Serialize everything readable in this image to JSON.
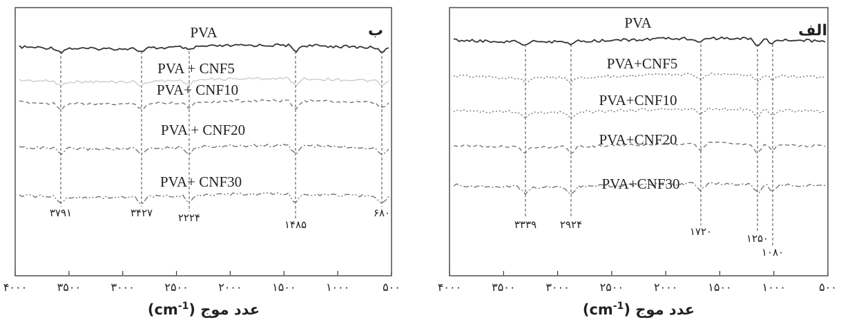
{
  "chart_data": [
    {
      "type": "line",
      "panel_tag": "ب",
      "series": [
        {
          "name": "PVA",
          "style": "solid",
          "color": "#333333"
        },
        {
          "name": "PVA + CNF5",
          "style": "solid-light",
          "color": "#c8c8c8"
        },
        {
          "name": "PVA+ CNF10",
          "style": "dashed",
          "color": "#6a6a6a"
        },
        {
          "name": "PVA + CNF20",
          "style": "dash-dot",
          "color": "#6a6a6a"
        },
        {
          "name": "PVA+ CNF30",
          "style": "dash-dot-dot",
          "color": "#6a6a6a"
        }
      ],
      "peaks": [
        {
          "x": 3791,
          "label": "۳۷۹۱"
        },
        {
          "x": 3427,
          "label": "۳۴۲۷"
        },
        {
          "x": 2224,
          "label": "۲۲۲۴"
        },
        {
          "x": 1485,
          "label": "۱۴۸۵"
        },
        {
          "x": 680,
          "label": "۶۸۰"
        }
      ],
      "xlim": [
        4000,
        500
      ],
      "xticks": [
        {
          "v": 4000,
          "label": "۴۰۰۰"
        },
        {
          "v": 3500,
          "label": "۳۵۰۰"
        },
        {
          "v": 3000,
          "label": "۳۰۰۰"
        },
        {
          "v": 2500,
          "label": "۲۵۰۰"
        },
        {
          "v": 2000,
          "label": "۲۰۰۰"
        },
        {
          "v": 1500,
          "label": "۱۵۰۰"
        },
        {
          "v": 1000,
          "label": "۱۰۰۰"
        },
        {
          "v": 500,
          "label": "۵۰۰"
        }
      ],
      "xlabel_text": "عدد موج",
      "xlabel_unit": "(cm",
      "xlabel_sup": "-1",
      "xlabel_close": ")"
    },
    {
      "type": "line",
      "panel_tag": "الف",
      "series": [
        {
          "name": "PVA",
          "style": "solid",
          "color": "#333333"
        },
        {
          "name": "PVA+CNF5",
          "style": "dotted",
          "color": "#6a6a6a"
        },
        {
          "name": "PVA+CNF10",
          "style": "dotted",
          "color": "#6a6a6a"
        },
        {
          "name": "PVA+CNF20",
          "style": "dashed",
          "color": "#6a6a6a"
        },
        {
          "name": "PVA+CNF30",
          "style": "dash-dot",
          "color": "#6a6a6a"
        }
      ],
      "peaks": [
        {
          "x": 3339,
          "label": "۳۳۳۹"
        },
        {
          "x": 2924,
          "label": "۲۹۲۴"
        },
        {
          "x": 1720,
          "label": "۱۷۲۰"
        },
        {
          "x": 1250,
          "label": "۱۲۵۰"
        },
        {
          "x": 1080,
          "label": "۱۰۸۰"
        }
      ],
      "xlim": [
        4000,
        500
      ],
      "xticks": [
        {
          "v": 4000,
          "label": "۴۰۰۰"
        },
        {
          "v": 3500,
          "label": "۳۵۰۰"
        },
        {
          "v": 3000,
          "label": "۳۰۰۰"
        },
        {
          "v": 2500,
          "label": "۲۵۰۰"
        },
        {
          "v": 2000,
          "label": "۲۰۰۰"
        },
        {
          "v": 1500,
          "label": "۱۵۰۰"
        },
        {
          "v": 1000,
          "label": "۱۰۰۰"
        },
        {
          "v": 500,
          "label": "۵۰۰"
        }
      ],
      "xlabel_text": "عدد موج",
      "xlabel_unit": "(cm",
      "xlabel_sup": "-1",
      "xlabel_close": ")"
    }
  ]
}
